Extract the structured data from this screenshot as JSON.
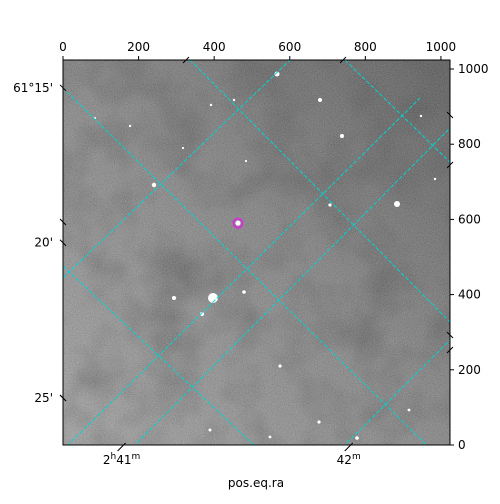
{
  "chart_data": {
    "type": "image",
    "xlabel": "pos.eq.ra",
    "ylabel": "",
    "pixel_axes": {
      "x_ticks": [
        0,
        200,
        400,
        600,
        800,
        1000
      ],
      "y_ticks": [
        0,
        200,
        400,
        600,
        800,
        1000
      ],
      "xlim": [
        0,
        1024
      ],
      "ylim": [
        0,
        1024
      ]
    },
    "world_axes": {
      "ra_ticks": [
        {
          "label_main": "2",
          "sup1": "h",
          "label_mid": "41",
          "sup2": "m",
          "x_pix": 155
        },
        {
          "label_main": "",
          "sup1": "",
          "label_mid": "42",
          "sup2": "m",
          "x_pix": 756
        }
      ],
      "dec_ticks": [
        {
          "label": "61°15'",
          "y_pix": 950
        },
        {
          "label": "20'",
          "y_pix": 538
        },
        {
          "label": "25'",
          "y_pix": 125
        }
      ]
    },
    "grid": true,
    "grid_color": "#00d4d4",
    "image_colormap": "gray",
    "marker": {
      "x_pix": 463,
      "y_pix": 590,
      "color": "#d633d6",
      "shape": "circle"
    }
  }
}
